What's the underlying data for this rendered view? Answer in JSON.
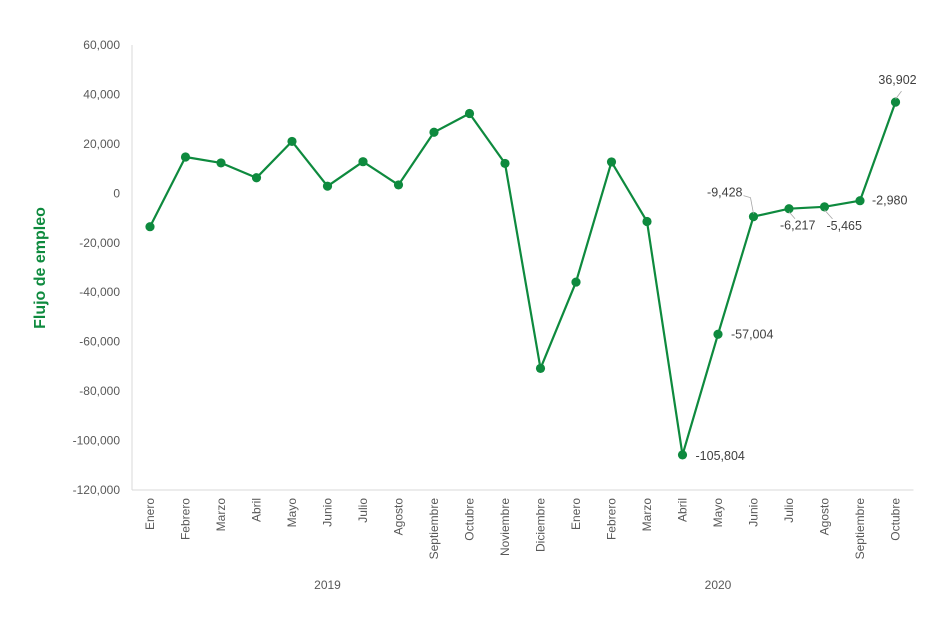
{
  "chart_data": {
    "type": "line",
    "title": "",
    "ylabel": "Flujo de empleo",
    "xlabel": "",
    "ylim": [
      -120000,
      60000
    ],
    "yticks": [
      60000,
      40000,
      20000,
      0,
      -20000,
      -40000,
      -60000,
      -80000,
      -100000,
      -120000
    ],
    "ytick_labels": [
      "60,000",
      "40,000",
      "20,000",
      "0",
      "-20,000",
      "-40,000",
      "-60,000",
      "-80,000",
      "-100,000",
      "-120,000"
    ],
    "categories": [
      "Enero",
      "Febrero",
      "Marzo",
      "Abril",
      "Mayo",
      "Junio",
      "Julio",
      "Agosto",
      "Septiembre",
      "Octubre",
      "Noviembre",
      "Diciembre",
      "Enero",
      "Febrero",
      "Marzo",
      "Abril",
      "Mayo",
      "Junio",
      "Julio",
      "Agosto",
      "Septiembre",
      "Octubre"
    ],
    "groups": [
      {
        "label": "2019",
        "start": 0,
        "end": 10
      },
      {
        "label": "2020",
        "start": 11,
        "end": 21
      }
    ],
    "values": [
      -13500,
      14700,
      12300,
      6300,
      21000,
      2900,
      12800,
      3400,
      24700,
      32300,
      12100,
      -70800,
      -35900,
      12700,
      -11400,
      -105804,
      -57004,
      -9428,
      -6217,
      -5465,
      -2980,
      36902
    ],
    "labeled_points": [
      {
        "index": 15,
        "text": "-105,804"
      },
      {
        "index": 16,
        "text": "-57,004"
      },
      {
        "index": 17,
        "text": "-9,428"
      },
      {
        "index": 18,
        "text": "-6,217"
      },
      {
        "index": 19,
        "text": "-5,465"
      },
      {
        "index": 20,
        "text": "-2,980"
      },
      {
        "index": 21,
        "text": "36,902"
      }
    ],
    "grid": false,
    "colors": {
      "line": "#0e8a3e",
      "ylabel": "#0e8a3e",
      "axis": "#d9d9d9",
      "text": "#595959"
    }
  }
}
